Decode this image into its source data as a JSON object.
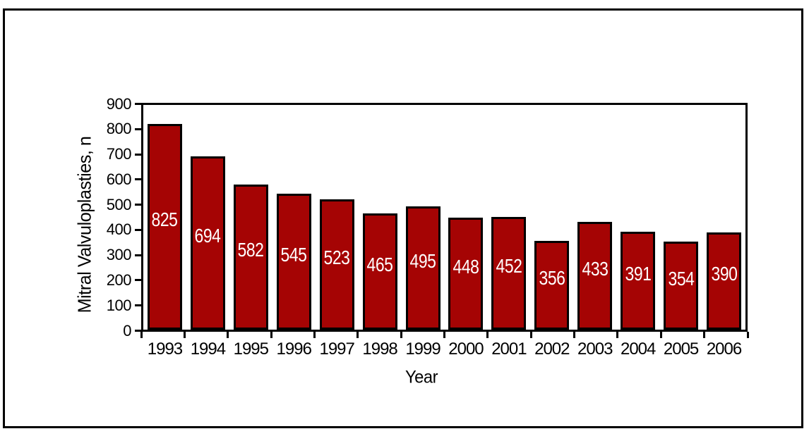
{
  "colors": {
    "bar_fill": "#A50404",
    "bar_border": "#000000",
    "axis": "#000000",
    "value_label": "#FFFFFF",
    "background": "#FFFFFF"
  },
  "chart_data": {
    "type": "bar",
    "title": "",
    "xlabel": "Year",
    "ylabel": "Mitral Valvuloplasties, n",
    "categories": [
      "1993",
      "1994",
      "1995",
      "1996",
      "1997",
      "1998",
      "1999",
      "2000",
      "2001",
      "2002",
      "2003",
      "2004",
      "2005",
      "2006"
    ],
    "values": [
      825,
      694,
      582,
      545,
      523,
      465,
      495,
      448,
      452,
      356,
      433,
      391,
      354,
      390
    ],
    "ylim": [
      0,
      900
    ],
    "ytick_interval": 100,
    "yticks": [
      0,
      100,
      200,
      300,
      400,
      500,
      600,
      700,
      800,
      900
    ],
    "value_labels_inside_bars": true,
    "grid": false,
    "legend": false
  }
}
